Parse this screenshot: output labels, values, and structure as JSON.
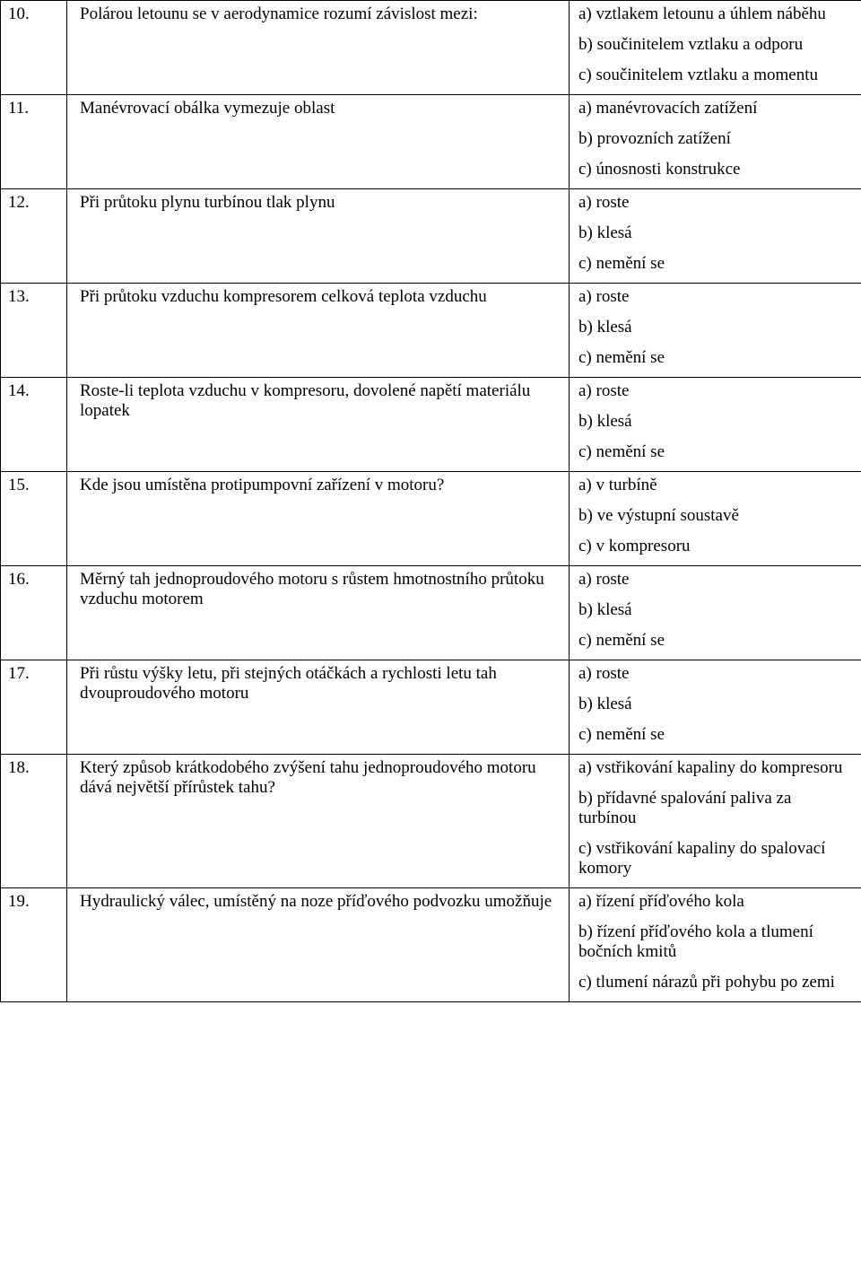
{
  "rows": [
    {
      "num": "10.",
      "question": "Polárou letounu se v aerodynamice rozumí závislost mezi:",
      "answers": [
        "a) vztlakem letounu a úhlem náběhu",
        "b) součinitelem vztlaku a odporu",
        "c) součinitelem vztlaku a momentu"
      ]
    },
    {
      "num": "11.",
      "question": "Manévrovací obálka vymezuje oblast",
      "answers": [
        "a) manévrovacích zatížení",
        "b) provozních zatížení",
        "c) únosnosti konstrukce"
      ]
    },
    {
      "num": "12.",
      "question": "Při průtoku plynu turbínou tlak plynu",
      "answers": [
        "a) roste",
        "b) klesá",
        "c) nemění se"
      ]
    },
    {
      "num": "13.",
      "question": "Při průtoku vzduchu kompresorem celková teplota vzduchu",
      "answers": [
        "a) roste",
        "b) klesá",
        "c) nemění se"
      ]
    },
    {
      "num": "14.",
      "question": "Roste-li teplota vzduchu v kompresoru, dovolené napětí materiálu lopatek",
      "answers": [
        "a) roste",
        "b) klesá",
        "c) nemění se"
      ]
    },
    {
      "num": "15.",
      "question": "Kde jsou umístěna protipumpovní zařízení v motoru?",
      "answers": [
        "a) v turbíně",
        "b) ve výstupní soustavě",
        "c) v kompresoru"
      ]
    },
    {
      "num": "16.",
      "question": "Měrný tah jednoproudového motoru s růstem hmotnostního průtoku vzduchu motorem",
      "answers": [
        "a) roste",
        "b) klesá",
        "c) nemění se"
      ]
    },
    {
      "num": "17.",
      "question": "Při růstu výšky letu, při stejných otáčkách a rychlosti letu tah dvouproudového motoru",
      "answers": [
        "a) roste",
        "b) klesá",
        "c) nemění se"
      ]
    },
    {
      "num": "18.",
      "question": "Který způsob krátkodobého zvýšení tahu jednoproudového motoru dává největší přírůstek tahu?",
      "answers": [
        "a) vstřikování kapaliny do kompresoru",
        "b) přídavné spalování paliva za turbínou",
        "c) vstřikování kapaliny do spalovací komory"
      ]
    },
    {
      "num": "19.",
      "question": "Hydraulický válec, umístěný na noze příďového podvozku umožňuje",
      "answers": [
        "a) řízení příďového kola",
        "b) řízení příďového kola a tlumení bočních kmitů",
        "c) tlumení nárazů při pohybu po zemi"
      ]
    }
  ]
}
